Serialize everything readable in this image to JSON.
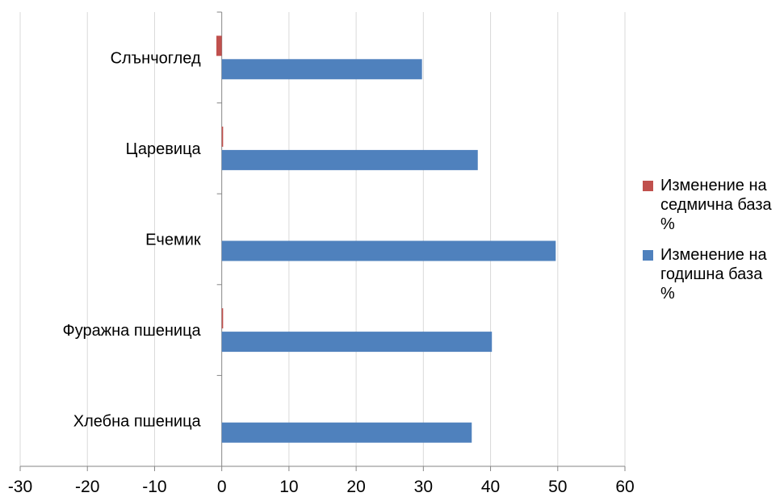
{
  "chart_data": {
    "type": "bar",
    "orientation": "horizontal",
    "categories": [
      "Слънчоглед",
      "Царевица",
      "Ечемик",
      "Фуражна пшеница",
      "Хлебна пшеница"
    ],
    "series": [
      {
        "name": "Изменение на седмична база %",
        "color": "#c0504d",
        "values": [
          -0.8,
          0.2,
          0.0,
          0.2,
          0.0
        ]
      },
      {
        "name": "Изменение на годишна база %",
        "color": "#4f81bd",
        "values": [
          29.8,
          38.1,
          49.7,
          40.2,
          37.2
        ]
      }
    ],
    "xlim": [
      -30,
      60
    ],
    "xticks": [
      -30,
      -20,
      -10,
      0,
      10,
      20,
      30,
      40,
      50,
      60
    ],
    "grid": true,
    "legend_position": "right",
    "title": "",
    "xlabel": "",
    "ylabel": ""
  },
  "legend": {
    "weekly_lines": [
      "Изменение на",
      "седмична база",
      "%"
    ],
    "yearly_lines": [
      "Изменение на",
      "годишна база",
      "%"
    ]
  }
}
